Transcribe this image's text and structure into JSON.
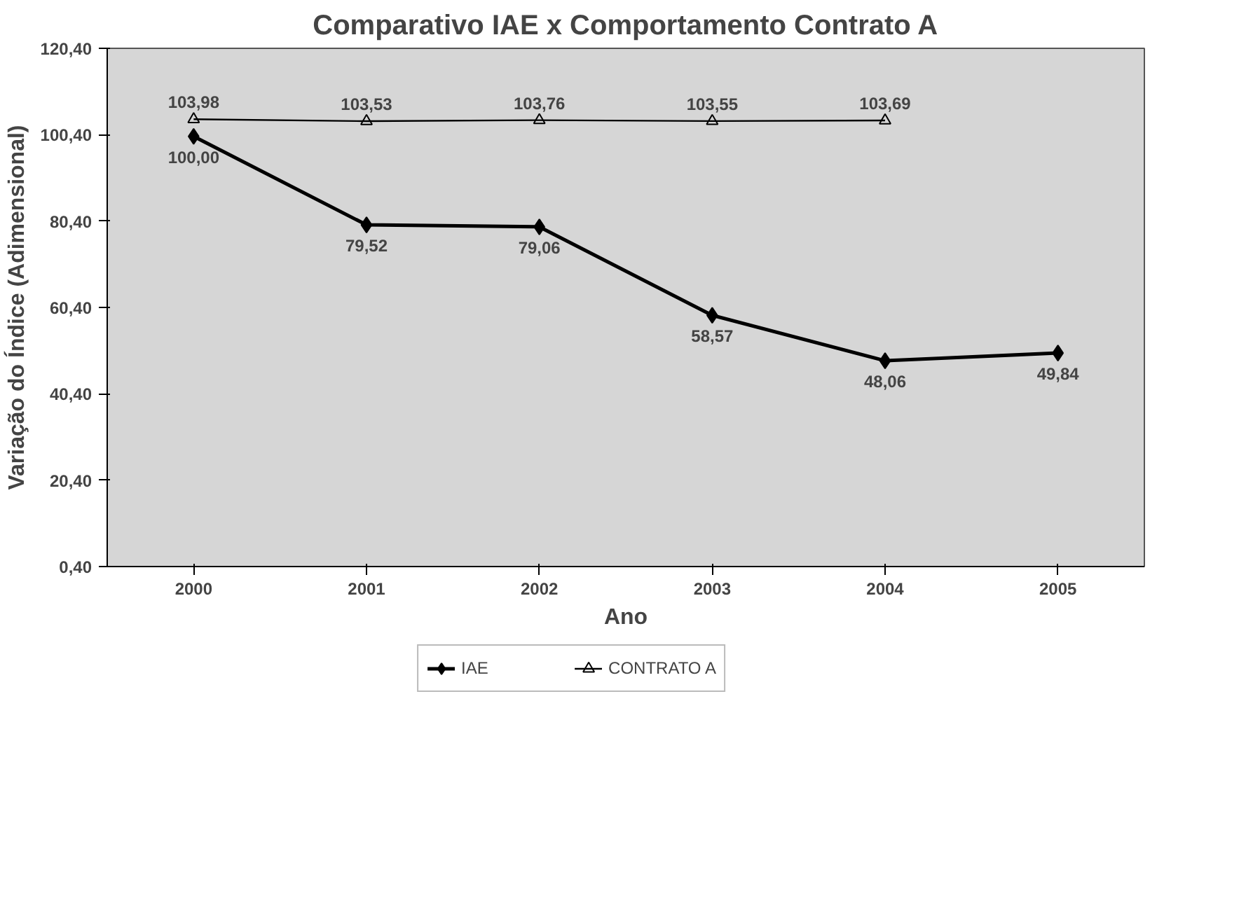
{
  "chart_data": {
    "type": "line",
    "title": "Comparativo IAE x Comportamento Contrato A",
    "xlabel": "Ano",
    "ylabel": "Variação do Índice (Adimensional)",
    "categories": [
      "2000",
      "2001",
      "2002",
      "2003",
      "2004",
      "2005"
    ],
    "series": [
      {
        "name": "IAE",
        "color": "#000000",
        "marker": "diamond",
        "values": [
          100.0,
          79.52,
          79.06,
          58.57,
          48.06,
          49.84
        ],
        "value_labels": [
          "100,00",
          "79,52",
          "79,06",
          "58,57",
          "48,06",
          "49,84"
        ]
      },
      {
        "name": "CONTRATO A",
        "color": "#000000",
        "marker": "triangle",
        "values": [
          103.98,
          103.53,
          103.76,
          103.55,
          103.69,
          null
        ],
        "value_labels": [
          "103,98",
          "103,53",
          "103,76",
          "103,55",
          "103,69",
          null
        ]
      }
    ],
    "ylim": [
      0.4,
      120.4
    ],
    "yticks": [
      {
        "value": 0.4,
        "label": "0,40"
      },
      {
        "value": 20.4,
        "label": "20,40"
      },
      {
        "value": 40.4,
        "label": "40,40"
      },
      {
        "value": 60.4,
        "label": "60,40"
      },
      {
        "value": 80.4,
        "label": "80,40"
      },
      {
        "value": 100.4,
        "label": "100,40"
      },
      {
        "value": 120.4,
        "label": "120,40"
      }
    ],
    "grid": false,
    "legend": "bottom",
    "line_style": "solid"
  }
}
